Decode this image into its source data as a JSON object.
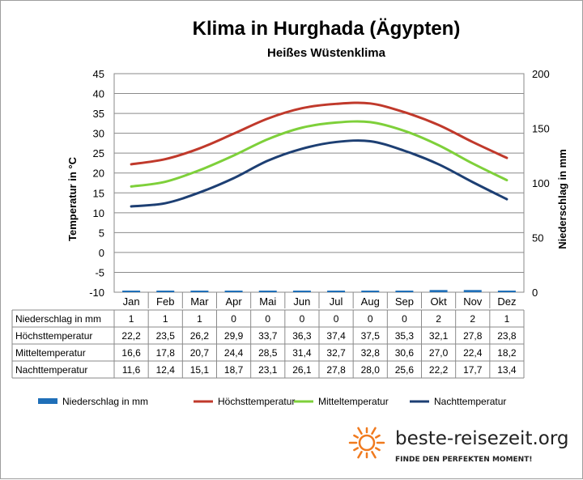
{
  "chart_data": {
    "type": "line",
    "title": "Klima in Hurghada (Ägypten)",
    "subtitle": "Heißes Wüstenklima",
    "categories": [
      "Jan",
      "Feb",
      "Mar",
      "Apr",
      "Mai",
      "Jun",
      "Jul",
      "Aug",
      "Sep",
      "Okt",
      "Nov",
      "Dez"
    ],
    "y_left_label": "Temperatur in °C",
    "y_right_label": "Niederschlag in mm",
    "y_left_lim": [
      -10,
      45
    ],
    "y_left_ticks": [
      "45",
      "40",
      "35",
      "30",
      "25",
      "20",
      "15",
      "10",
      "5",
      "0",
      "-5",
      "-10"
    ],
    "y_right_lim": [
      0,
      200
    ],
    "y_right_ticks": [
      "200",
      "150",
      "100",
      "50",
      "0"
    ],
    "grid": true,
    "series": [
      {
        "name": "Niederschlag in mm",
        "type": "bar",
        "axis": "right",
        "color": "#1f6fb8",
        "values": [
          1,
          1,
          1,
          0,
          0,
          0,
          0,
          0,
          0,
          2,
          2,
          1
        ],
        "labels": [
          "1",
          "1",
          "1",
          "0",
          "0",
          "0",
          "0",
          "0",
          "0",
          "2",
          "2",
          "1"
        ]
      },
      {
        "name": "Höchsttemperatur",
        "type": "line",
        "axis": "left",
        "color": "#c0392b",
        "values": [
          22.2,
          23.5,
          26.2,
          29.9,
          33.7,
          36.3,
          37.4,
          37.5,
          35.3,
          32.1,
          27.8,
          23.8
        ],
        "labels": [
          "22,2",
          "23,5",
          "26,2",
          "29,9",
          "33,7",
          "36,3",
          "37,4",
          "37,5",
          "35,3",
          "32,1",
          "27,8",
          "23,8"
        ]
      },
      {
        "name": "Mitteltemperatur",
        "type": "line",
        "axis": "left",
        "color": "#7ed03a",
        "values": [
          16.6,
          17.8,
          20.7,
          24.4,
          28.5,
          31.4,
          32.7,
          32.8,
          30.6,
          27.0,
          22.4,
          18.2
        ],
        "labels": [
          "16,6",
          "17,8",
          "20,7",
          "24,4",
          "28,5",
          "31,4",
          "32,7",
          "32,8",
          "30,6",
          "27,0",
          "22,4",
          "18,2"
        ]
      },
      {
        "name": "Nachttemperatur",
        "type": "line",
        "axis": "left",
        "color": "#1d3f73",
        "values": [
          11.6,
          12.4,
          15.1,
          18.7,
          23.1,
          26.1,
          27.8,
          28.0,
          25.6,
          22.2,
          17.7,
          13.4
        ],
        "labels": [
          "11,6",
          "12,4",
          "15,1",
          "18,7",
          "23,1",
          "26,1",
          "27,8",
          "28,0",
          "25,6",
          "22,2",
          "17,7",
          "13,4"
        ]
      }
    ],
    "legend_position": "bottom"
  },
  "branding": {
    "name": "beste-reisezeit.org",
    "slogan": "FINDE DEN PERFEKTEN MOMENT!",
    "sun_color": "#f07a1e",
    "icon": "sun-icon"
  }
}
